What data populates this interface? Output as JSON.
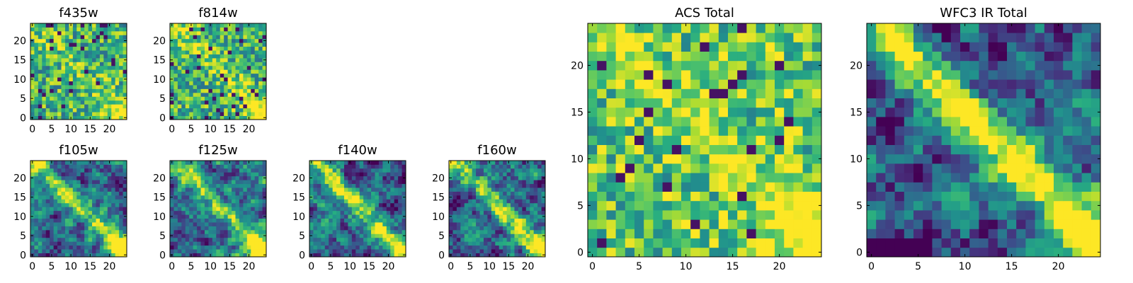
{
  "chart_data": [
    {
      "type": "heatmap",
      "title": "f435w",
      "grid_size": 25,
      "colormap": "viridis",
      "xlim": [
        0,
        24
      ],
      "ylim": [
        0,
        24
      ],
      "xticks": [
        0,
        5,
        10,
        15,
        20
      ],
      "yticks": [
        0,
        5,
        10,
        15,
        20
      ],
      "pattern": "noisy",
      "signal": "weak-diagonal",
      "seed": 11
    },
    {
      "type": "heatmap",
      "title": "f814w",
      "grid_size": 25,
      "colormap": "viridis",
      "xlim": [
        0,
        24
      ],
      "ylim": [
        0,
        24
      ],
      "xticks": [
        0,
        5,
        10,
        15,
        20
      ],
      "yticks": [
        0,
        5,
        10,
        15,
        20
      ],
      "pattern": "noisy",
      "signal": "diagonal",
      "seed": 23
    },
    {
      "type": "heatmap",
      "title": "f105w",
      "grid_size": 25,
      "colormap": "viridis",
      "xlim": [
        0,
        24
      ],
      "ylim": [
        0,
        24
      ],
      "xticks": [
        0,
        5,
        10,
        15,
        20
      ],
      "yticks": [
        0,
        5,
        10,
        15,
        20
      ],
      "pattern": "smooth",
      "signal": "diagonal",
      "seed": 37
    },
    {
      "type": "heatmap",
      "title": "f125w",
      "grid_size": 25,
      "colormap": "viridis",
      "xlim": [
        0,
        24
      ],
      "ylim": [
        0,
        24
      ],
      "xticks": [
        0,
        5,
        10,
        15,
        20
      ],
      "yticks": [
        0,
        5,
        10,
        15,
        20
      ],
      "pattern": "smooth",
      "signal": "diagonal",
      "seed": 41
    },
    {
      "type": "heatmap",
      "title": "f140w",
      "grid_size": 25,
      "colormap": "viridis",
      "xlim": [
        0,
        24
      ],
      "ylim": [
        0,
        24
      ],
      "xticks": [
        0,
        5,
        10,
        15,
        20
      ],
      "yticks": [
        0,
        5,
        10,
        15,
        20
      ],
      "pattern": "smooth",
      "signal": "diagonal",
      "seed": 53
    },
    {
      "type": "heatmap",
      "title": "f160w",
      "grid_size": 25,
      "colormap": "viridis",
      "xlim": [
        0,
        24
      ],
      "ylim": [
        0,
        24
      ],
      "xticks": [
        0,
        5,
        10,
        15,
        20
      ],
      "yticks": [
        0,
        5,
        10,
        15,
        20
      ],
      "pattern": "smooth",
      "signal": "diagonal",
      "seed": 67
    },
    {
      "type": "heatmap",
      "title": "ACS Total",
      "grid_size": 25,
      "colormap": "viridis",
      "xlim": [
        0,
        24
      ],
      "ylim": [
        0,
        24
      ],
      "xticks": [
        0,
        5,
        10,
        15,
        20
      ],
      "yticks": [
        0,
        5,
        10,
        15,
        20
      ],
      "pattern": "noisy-bright",
      "signal": "diagonal",
      "seed": 79
    },
    {
      "type": "heatmap",
      "title": "WFC3 IR Total",
      "grid_size": 25,
      "colormap": "viridis",
      "xlim": [
        0,
        24
      ],
      "ylim": [
        0,
        24
      ],
      "xticks": [
        0,
        5,
        10,
        15,
        20
      ],
      "yticks": [
        0,
        5,
        10,
        15,
        20
      ],
      "pattern": "smooth-dark",
      "signal": "strong-diagonal",
      "seed": 97
    }
  ]
}
